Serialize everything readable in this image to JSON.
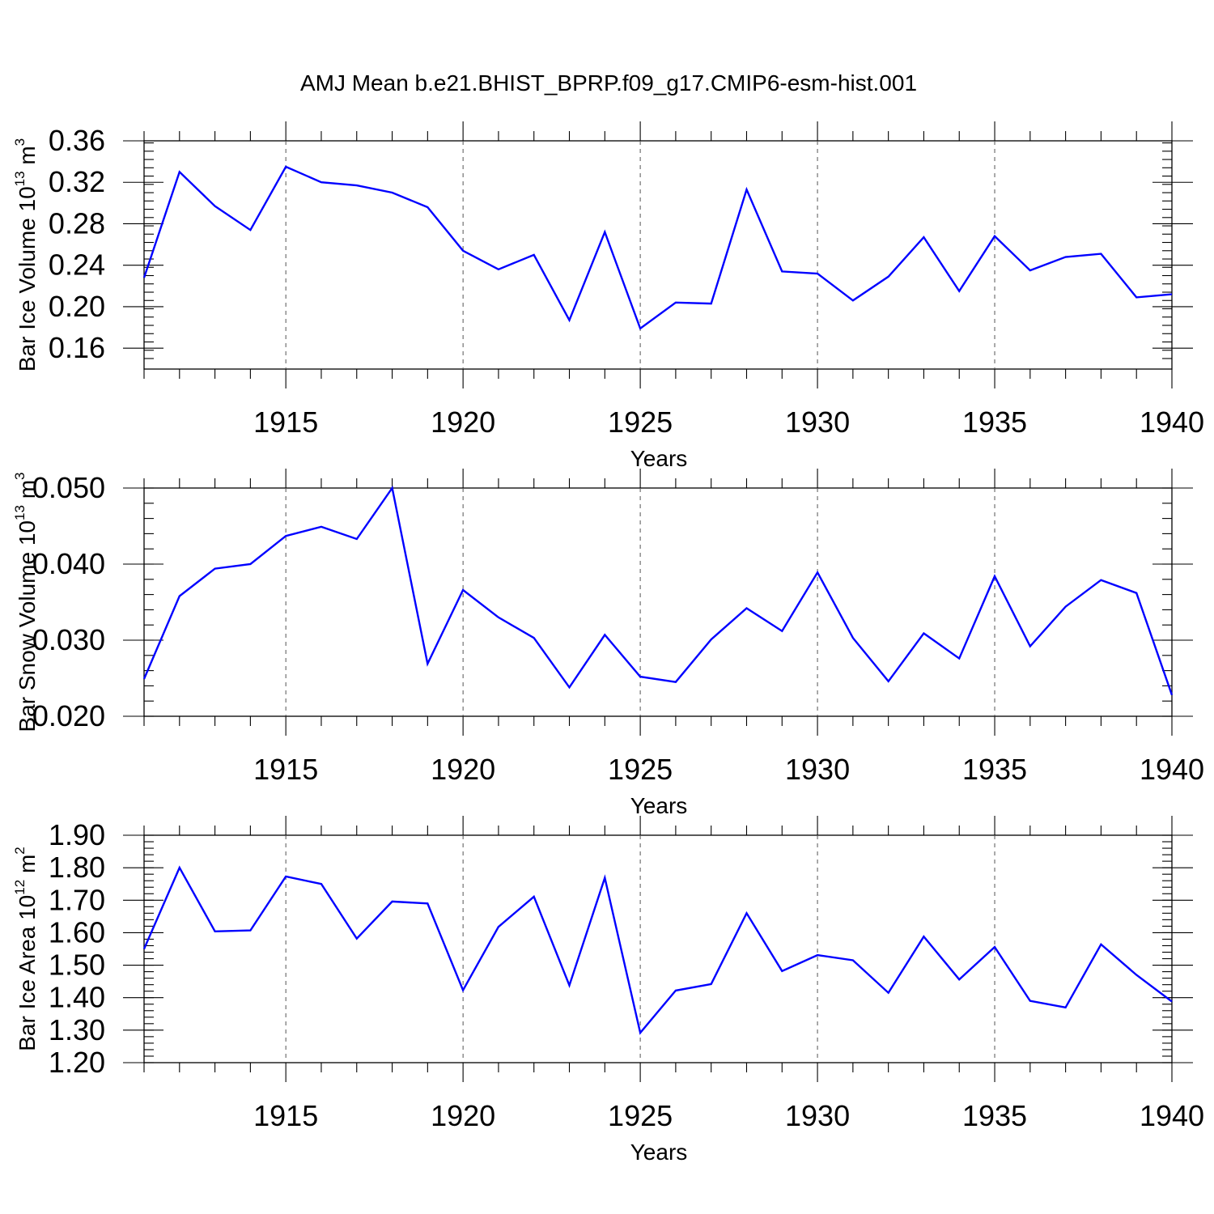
{
  "title": "AMJ Mean b.e21.BHIST_BPRP.f09_g17.CMIP6-esm-hist.001",
  "line_color": "#0000ff",
  "chart_data": [
    {
      "type": "line",
      "ylabel": {
        "text": "Bar Ice Volume 10",
        "sup": "13",
        "unit": "m",
        "unit_sup": "3"
      },
      "xlabel": "Years",
      "xlim": [
        1911,
        1940
      ],
      "ylim": [
        0.15,
        0.36
      ],
      "xticks": [
        1915,
        1920,
        1925,
        1930,
        1935,
        1940
      ],
      "yticks": [
        "0.16",
        "0.20",
        "0.24",
        "0.28",
        "0.32",
        "0.36"
      ],
      "y_minor_step": 0.008,
      "grid": "dashed vertical at major x ticks",
      "x": [
        1911,
        1912,
        1913,
        1914,
        1915,
        1916,
        1917,
        1918,
        1919,
        1920,
        1921,
        1922,
        1923,
        1924,
        1925,
        1926,
        1927,
        1928,
        1929,
        1930,
        1931,
        1932,
        1933,
        1934,
        1935,
        1936,
        1937,
        1938,
        1939,
        1940
      ],
      "values": [
        0.228,
        0.33,
        0.297,
        0.274,
        0.335,
        0.32,
        0.317,
        0.31,
        0.296,
        0.254,
        0.236,
        0.25,
        0.187,
        0.272,
        0.179,
        0.204,
        0.203,
        0.313,
        0.234,
        0.232,
        0.206,
        0.229,
        0.267,
        0.215,
        0.268,
        0.235,
        0.248,
        0.251,
        0.209,
        0.212
      ]
    },
    {
      "type": "line",
      "ylabel": {
        "text": "Bar Snow Volume 10",
        "sup": "13",
        "unit": "m",
        "unit_sup": "3"
      },
      "xlabel": "Years",
      "xlim": [
        1911,
        1940
      ],
      "ylim": [
        0.02,
        0.05
      ],
      "xticks": [
        1915,
        1920,
        1925,
        1930,
        1935,
        1940
      ],
      "yticks": [
        "0.020",
        "0.030",
        "0.040",
        "0.050"
      ],
      "y_minor_step": 0.002,
      "grid": "dashed vertical at major x ticks",
      "x": [
        1911,
        1912,
        1913,
        1914,
        1915,
        1916,
        1917,
        1918,
        1919,
        1920,
        1921,
        1922,
        1923,
        1924,
        1925,
        1926,
        1927,
        1928,
        1929,
        1930,
        1931,
        1932,
        1933,
        1934,
        1935,
        1936,
        1937,
        1938,
        1939,
        1940
      ],
      "values": [
        0.0249,
        0.0358,
        0.0394,
        0.04,
        0.0437,
        0.0449,
        0.0433,
        0.05,
        0.0269,
        0.0366,
        0.033,
        0.0303,
        0.0238,
        0.0307,
        0.0252,
        0.0245,
        0.0301,
        0.0342,
        0.0312,
        0.0389,
        0.0303,
        0.0246,
        0.0309,
        0.0276,
        0.0384,
        0.0292,
        0.0344,
        0.0379,
        0.0362,
        0.0228
      ]
    },
    {
      "type": "line",
      "ylabel": {
        "text": "Bar Ice Area 10",
        "sup": "12",
        "unit": "m",
        "unit_sup": "2"
      },
      "xlabel": "Years",
      "xlim": [
        1911,
        1940
      ],
      "ylim": [
        1.2,
        1.9
      ],
      "xticks": [
        1915,
        1920,
        1925,
        1930,
        1935,
        1940
      ],
      "yticks": [
        "1.20",
        "1.30",
        "1.40",
        "1.50",
        "1.60",
        "1.70",
        "1.80",
        "1.90"
      ],
      "y_minor_step": 0.02,
      "grid": "dashed vertical at major x ticks",
      "x": [
        1911,
        1912,
        1913,
        1914,
        1915,
        1916,
        1917,
        1918,
        1919,
        1920,
        1921,
        1922,
        1923,
        1924,
        1925,
        1926,
        1927,
        1928,
        1929,
        1930,
        1931,
        1932,
        1933,
        1934,
        1935,
        1936,
        1937,
        1938,
        1939,
        1940
      ],
      "values": [
        1.55,
        1.8,
        1.604,
        1.607,
        1.773,
        1.75,
        1.582,
        1.696,
        1.69,
        1.423,
        1.618,
        1.711,
        1.438,
        1.769,
        1.292,
        1.422,
        1.442,
        1.66,
        1.482,
        1.531,
        1.515,
        1.415,
        1.588,
        1.456,
        1.556,
        1.39,
        1.37,
        1.564,
        1.47,
        1.388
      ]
    }
  ]
}
